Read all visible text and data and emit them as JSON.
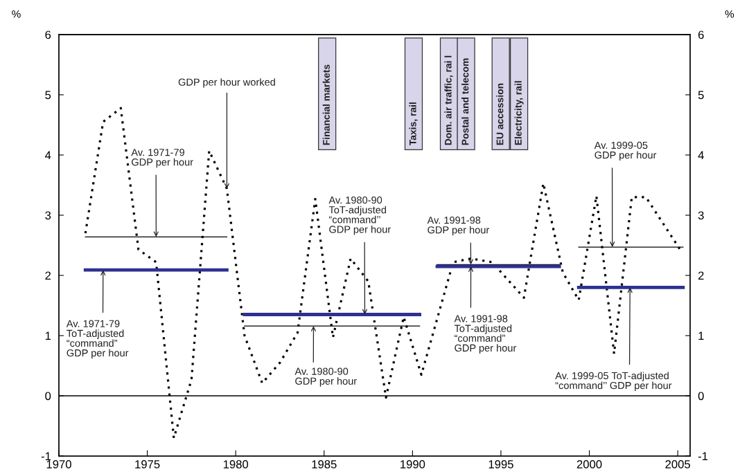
{
  "chart_data": {
    "type": "line",
    "ylabel": "%",
    "y2label": "%",
    "xlim": [
      1970,
      2005.7
    ],
    "xticks": [
      1970,
      1975,
      1980,
      1985,
      1990,
      1995,
      2000,
      2005
    ],
    "ylim": [
      -1,
      6
    ],
    "yticks": [
      -1,
      0,
      1,
      2,
      3,
      4,
      5,
      6
    ],
    "y2lim": [
      -1,
      6
    ],
    "y2ticks": [
      -1,
      0,
      1,
      2,
      3,
      4,
      5,
      6
    ],
    "grid": false,
    "legend": false,
    "marker": "none",
    "ref_lines": [
      {
        "axis": "y",
        "value": 0,
        "color": "#000000",
        "line_style": "solid"
      }
    ],
    "series": [
      {
        "color": "#000000",
        "line_style": "dotted",
        "x": [
          1971.5,
          1972.5,
          1973.5,
          1974.5,
          1975.5,
          1976.5,
          1977.5,
          1978.5,
          1979.5,
          1980.5,
          1981.5,
          1982.5,
          1983.5,
          1984.5,
          1985.5,
          1986.5,
          1987.5,
          1988.5,
          1989.5,
          1990.5,
          1992.3,
          1993.3,
          1994.5,
          1996.3,
          1997.4,
          1998.5,
          1999.4,
          2000.4,
          2001.4,
          2002.4,
          2003.2,
          2005.2
        ],
        "values": [
          2.7,
          4.55,
          4.78,
          2.43,
          2.22,
          -0.7,
          0.27,
          4.07,
          3.44,
          1.0,
          0.21,
          0.55,
          1.05,
          3.27,
          0.97,
          2.28,
          1.9,
          -0.03,
          1.31,
          0.35,
          2.22,
          2.28,
          2.22,
          1.63,
          3.53,
          2.05,
          1.59,
          3.32,
          0.7,
          3.3,
          3.3,
          2.4
        ]
      },
      {
        "color": "#000000",
        "line_style": "solid",
        "x": [
          1971.5,
          1979.5
        ],
        "values": [
          2.64,
          2.64
        ]
      },
      {
        "color": "#2e3192",
        "line_style": "solid",
        "x": [
          1971.5,
          1979.5
        ],
        "values": [
          2.09,
          2.09
        ]
      },
      {
        "color": "#000000",
        "line_style": "solid",
        "x": [
          1980.5,
          1990.4
        ],
        "values": [
          1.16,
          1.16
        ]
      },
      {
        "color": "#2e3192",
        "line_style": "solid",
        "x": [
          1980.5,
          1990.4
        ],
        "values": [
          1.35,
          1.35
        ]
      },
      {
        "color": "#000000",
        "line_style": "solid",
        "x": [
          1991.4,
          1998.3
        ],
        "values": [
          2.18,
          2.18
        ]
      },
      {
        "color": "#2e3192",
        "line_style": "solid",
        "x": [
          1991.4,
          1998.3
        ],
        "values": [
          2.15,
          2.15
        ]
      },
      {
        "color": "#000000",
        "line_style": "solid",
        "x": [
          1999.4,
          2005.3
        ],
        "values": [
          2.47,
          2.47
        ]
      },
      {
        "color": "#2e3192",
        "line_style": "solid",
        "x": [
          1999.4,
          2005.3
        ],
        "values": [
          1.8,
          1.8
        ]
      }
    ],
    "annotations": [
      {
        "text": "GDP per hour worked",
        "x": 1979.5,
        "y": 3.44
      },
      {
        "text": "Av. 1971-79\nGDP per hour",
        "x": 1975.5,
        "y": 2.64
      },
      {
        "text": "Av. 1971-79\nToT-adjusted\n“command”\nGDP per hour",
        "x": 1972.5,
        "y": 2.09
      },
      {
        "text": "Av. 1980-90\nToT-adjusted\n“command’’\nGDP per hour",
        "x": 1987.3,
        "y": 1.35
      },
      {
        "text": "Av. 1980-90\nGDP per hour",
        "x": 1984.4,
        "y": 1.16
      },
      {
        "text": "Av. 1991-98\nGDP per hour",
        "x": 1993.3,
        "y": 2.18
      },
      {
        "text": "Av. 1991-98\nToT-adjusted\n“command”\nGDP per hour",
        "x": 1993.3,
        "y": 2.15
      },
      {
        "text": "Av. 1999-05\nGDP per hour",
        "x": 2001.3,
        "y": 2.47
      },
      {
        "text": "Av. 1999-05 ToT-adjusted\n“command’’ GDP per hour",
        "x": 2002.3,
        "y": 1.8
      },
      "Financial markets",
      "Taxis, rail",
      "Dom. air traffic, rai l",
      "Postal and telecom",
      "EU accession",
      "Electricity, rail"
    ]
  }
}
